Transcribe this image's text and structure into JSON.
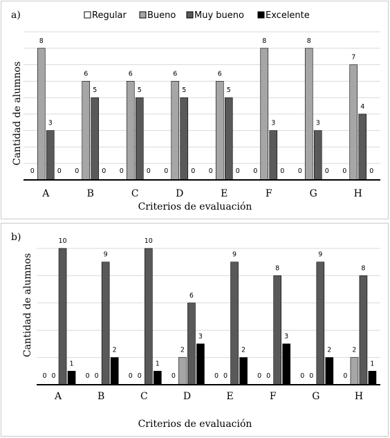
{
  "legend": {
    "items": [
      {
        "label": "Regular",
        "color": "#ffffff"
      },
      {
        "label": "Bueno",
        "color": "#a6a6a6"
      },
      {
        "label": "Muy bueno",
        "color": "#595959"
      },
      {
        "label": "Excelente",
        "color": "#000000"
      }
    ]
  },
  "chart_data": [
    {
      "type": "bar",
      "panel_label": "a)",
      "categories": [
        "A",
        "B",
        "C",
        "D",
        "E",
        "F",
        "G",
        "H"
      ],
      "series": [
        {
          "name": "Regular",
          "color": "#ffffff",
          "values": [
            0,
            0,
            0,
            0,
            0,
            0,
            0,
            0
          ]
        },
        {
          "name": "Bueno",
          "color": "#a6a6a6",
          "values": [
            8,
            6,
            6,
            6,
            6,
            8,
            8,
            7
          ]
        },
        {
          "name": "Muy bueno",
          "color": "#595959",
          "values": [
            3,
            5,
            5,
            5,
            5,
            3,
            3,
            4
          ]
        },
        {
          "name": "Excelente",
          "color": "#000000",
          "values": [
            0,
            0,
            0,
            0,
            0,
            0,
            0,
            0
          ]
        }
      ],
      "xlabel": "Criterios  de evaluación",
      "ylabel": "Cantidad de alumnos",
      "ylim": [
        0,
        9
      ],
      "grid": true,
      "legend_position": "top"
    },
    {
      "type": "bar",
      "panel_label": "b)",
      "categories": [
        "A",
        "B",
        "C",
        "D",
        "E",
        "F",
        "G",
        "H"
      ],
      "series": [
        {
          "color": "#ffffff",
          "values": [
            0,
            0,
            0,
            0,
            0,
            0,
            0,
            0
          ]
        },
        {
          "color": "#a6a6a6",
          "values": [
            0,
            0,
            0,
            2,
            0,
            0,
            0,
            2
          ]
        },
        {
          "color": "#595959",
          "values": [
            10,
            9,
            10,
            6,
            9,
            8,
            9,
            8
          ]
        },
        {
          "color": "#000000",
          "values": [
            1,
            2,
            1,
            3,
            2,
            3,
            2,
            1
          ]
        }
      ],
      "xlabel": "Criterios de evaluación",
      "ylabel": "Cantidad de alumnos",
      "ylim": [
        0,
        10
      ],
      "grid": true
    }
  ]
}
